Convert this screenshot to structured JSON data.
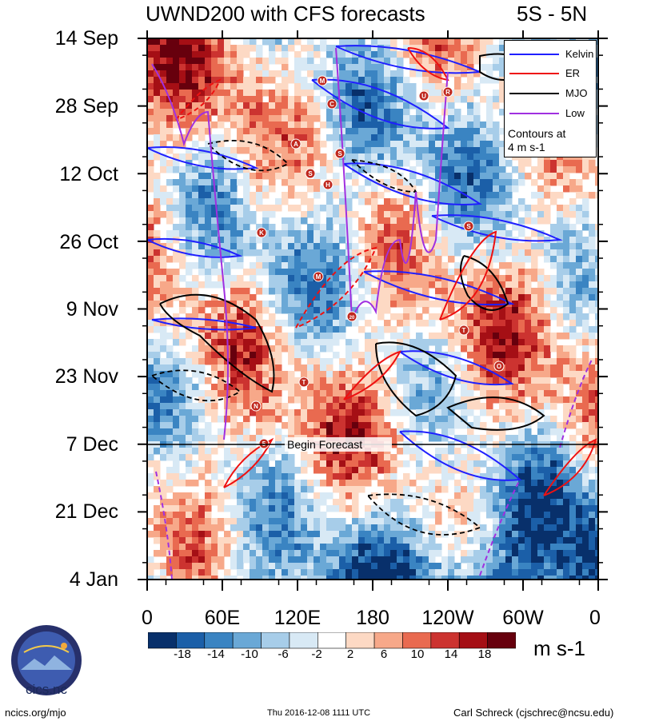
{
  "title": {
    "left": "UWND200 with CFS forecasts",
    "right": "5S - 5N"
  },
  "chart_data": {
    "type": "heatmap",
    "title": "UWND200 with CFS forecasts",
    "subtitle": "5S - 5N",
    "x_axis": {
      "tick_labels": [
        "0",
        "60E",
        "120E",
        "180",
        "120W",
        "60W",
        "0"
      ],
      "range_deg": [
        0,
        360
      ]
    },
    "y_axis": {
      "tick_labels": [
        "14 Sep",
        "28 Sep",
        "12 Oct",
        "26 Oct",
        "9 Nov",
        "23 Nov",
        "7 Dec",
        "21 Dec",
        "4 Jan"
      ],
      "inverted": true
    },
    "annotation": "Begin Forecast",
    "legend": {
      "entries": [
        {
          "label": "Kelvin",
          "color": "#1f1fff"
        },
        {
          "label": "ER",
          "color": "#ee1111"
        },
        {
          "label": "MJO",
          "color": "#000000"
        },
        {
          "label": "Low",
          "color": "#a030e0"
        }
      ],
      "note_line1": "Contours at",
      "note_line2": "4 m s-1"
    },
    "colorbar": {
      "tick_labels": [
        "-18",
        "-14",
        "-10",
        "-6",
        "-2",
        "2",
        "6",
        "10",
        "14",
        "18"
      ],
      "units": "m s-1",
      "colors": [
        "#08306b",
        "#1b5fa8",
        "#3a84c2",
        "#6aa8d6",
        "#a7cde9",
        "#d8e9f5",
        "#ffffff",
        "#fdd9c4",
        "#f7a889",
        "#e96a50",
        "#cc3330",
        "#a50f15",
        "#67000d"
      ]
    },
    "storm_markers": [
      "M",
      "C",
      "U",
      "R",
      "A",
      "S",
      "S",
      "H",
      "K",
      "M",
      "T",
      "20",
      "S",
      "T",
      "O",
      "N",
      "5"
    ]
  },
  "footer": {
    "left": "ncics.org/mjo",
    "center": "Thu 2016-12-08 1111 UTC",
    "right": "Carl Schreck (cjschrec@ncsu.edu)"
  },
  "logo": {
    "text": "cics.nc",
    "ring_text": "Cooperative Institute for Climate and Satellites"
  }
}
